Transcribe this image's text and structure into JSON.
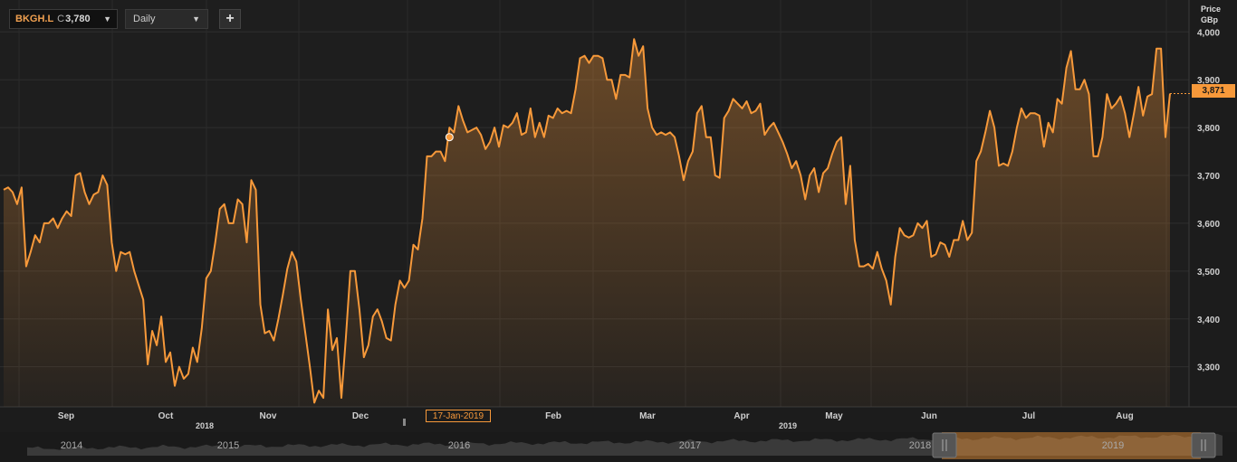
{
  "toolbar": {
    "ticker_symbol": "BKGH.L",
    "price_label": "C",
    "last_price": "3,780",
    "period": "Daily",
    "add_label": "+"
  },
  "axis_header": {
    "line1": "Price",
    "line2": "GBp"
  },
  "current_price_label": "3,871",
  "crosshair_date": "17-Jan-2019",
  "colors": {
    "line": "#f7993a",
    "background": "#1c1c1c",
    "grid": "#2e2e2e"
  },
  "chart_data": {
    "type": "area",
    "ylabel": "Price GBp",
    "ylim": [
      3220,
      4010
    ],
    "yticks": [
      3300,
      3400,
      3500,
      3600,
      3700,
      3800,
      3900,
      4000
    ],
    "ytick_labels": [
      "3,300",
      "3,400",
      "3,500",
      "3,600",
      "3,700",
      "3,800",
      "3,900",
      "4,000"
    ],
    "month_labels": [
      "Sep",
      "Oct",
      "Nov",
      "Dec",
      "Feb",
      "Mar",
      "Apr",
      "May",
      "Jun",
      "Jul",
      "Aug"
    ],
    "year_labels": [
      "2018",
      "2019"
    ],
    "navigator_years": [
      "2014",
      "2015",
      "2016",
      "2017",
      "2018",
      "2019"
    ],
    "crosshair_value": 3780,
    "series": [
      {
        "values": [
          3670,
          3675,
          3665,
          3640,
          3675,
          3510,
          3540,
          3575,
          3560,
          3600,
          3600,
          3610,
          3590,
          3610,
          3625,
          3615,
          3700,
          3705,
          3665,
          3640,
          3660,
          3665,
          3700,
          3680,
          3560,
          3500,
          3540,
          3535,
          3540,
          3500,
          3470,
          3440,
          3305,
          3375,
          3345,
          3405,
          3310,
          3330,
          3260,
          3300,
          3275,
          3285,
          3340,
          3310,
          3380,
          3485,
          3500,
          3560,
          3630,
          3640,
          3600,
          3600,
          3650,
          3640,
          3560,
          3690,
          3670,
          3430,
          3370,
          3375,
          3355,
          3400,
          3450,
          3505,
          3540,
          3520,
          3440,
          3370,
          3300,
          3225,
          3250,
          3235,
          3420,
          3335,
          3360,
          3235,
          3360,
          3500,
          3500,
          3420,
          3320,
          3345,
          3405,
          3420,
          3395,
          3360,
          3355,
          3430,
          3480,
          3465,
          3480,
          3555,
          3545,
          3610,
          3740,
          3740,
          3750,
          3750,
          3730,
          3800,
          3790,
          3845,
          3815,
          3790,
          3795,
          3800,
          3785,
          3755,
          3770,
          3800,
          3760,
          3805,
          3800,
          3810,
          3830,
          3785,
          3790,
          3840,
          3780,
          3810,
          3780,
          3825,
          3820,
          3840,
          3830,
          3835,
          3830,
          3880,
          3945,
          3950,
          3935,
          3950,
          3950,
          3945,
          3900,
          3900,
          3860,
          3910,
          3910,
          3905,
          3985,
          3950,
          3970,
          3840,
          3800,
          3785,
          3790,
          3785,
          3790,
          3780,
          3740,
          3690,
          3730,
          3750,
          3830,
          3845,
          3780,
          3780,
          3700,
          3695,
          3820,
          3835,
          3860,
          3850,
          3840,
          3855,
          3830,
          3835,
          3850,
          3785,
          3800,
          3810,
          3790,
          3770,
          3745,
          3715,
          3730,
          3700,
          3650,
          3700,
          3715,
          3665,
          3705,
          3715,
          3745,
          3770,
          3780,
          3640,
          3720,
          3565,
          3510,
          3510,
          3515,
          3505,
          3540,
          3505,
          3480,
          3430,
          3530,
          3590,
          3575,
          3570,
          3575,
          3600,
          3590,
          3605,
          3530,
          3535,
          3560,
          3555,
          3530,
          3565,
          3565,
          3605,
          3565,
          3580,
          3730,
          3750,
          3790,
          3835,
          3800,
          3720,
          3725,
          3720,
          3750,
          3800,
          3840,
          3820,
          3830,
          3830,
          3825,
          3760,
          3810,
          3790,
          3860,
          3850,
          3925,
          3960,
          3880,
          3880,
          3900,
          3870,
          3740,
          3740,
          3780,
          3870,
          3840,
          3850,
          3865,
          3830,
          3780,
          3830,
          3885,
          3825,
          3865,
          3870,
          3965,
          3965,
          3780,
          3871
        ]
      }
    ]
  }
}
